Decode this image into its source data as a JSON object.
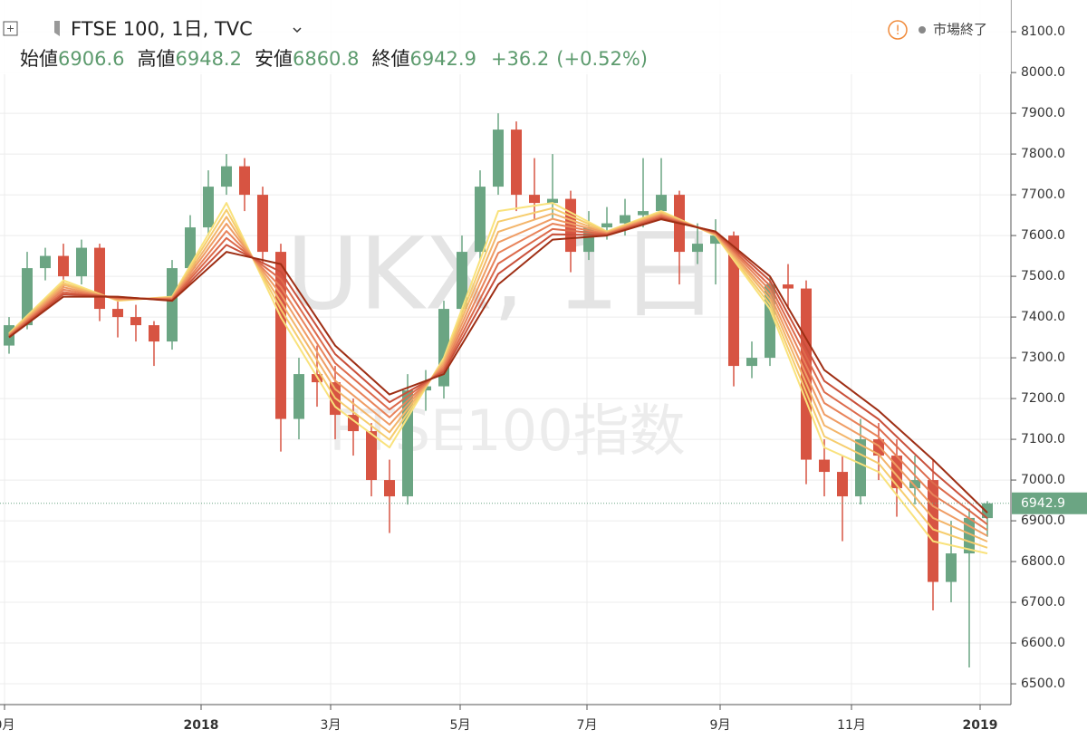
{
  "chart_data": {
    "type": "candlestick",
    "title": "FTSE 100, 1日, TVC",
    "header": {
      "labels": [
        "始値",
        "高値",
        "安値",
        "終値"
      ],
      "change": "+36.2",
      "change_pct": "(+0.52%)",
      "status": "市場終了"
    },
    "watermark": [
      "UKX, 1日",
      "FTSE100指数"
    ],
    "up_color": "#6ba583",
    "down_color": "#d75442",
    "x": [
      0,
      1,
      2,
      3,
      4,
      5,
      6,
      7,
      8,
      9,
      10,
      11,
      12,
      13,
      14,
      15,
      16,
      17,
      18,
      19,
      20,
      21,
      22,
      23,
      24,
      25,
      26,
      27,
      28,
      29,
      30,
      31,
      32,
      33,
      34,
      35,
      36,
      37,
      38,
      39,
      40,
      41,
      42,
      43,
      44,
      45,
      46,
      47,
      48,
      49,
      50,
      51,
      52,
      53,
      54
    ],
    "series": [
      {
        "open": [
          7330,
          7380,
          7520,
          7550,
          7500,
          7570,
          7420,
          7400,
          7380,
          7340,
          7520,
          7620,
          7720,
          7770,
          7700,
          7560,
          7150,
          7260,
          7240,
          7160,
          7120,
          7000,
          6960,
          7220,
          7230,
          7420,
          7560,
          7720,
          7860,
          7700,
          7680,
          7690,
          7560,
          7620,
          7630,
          7650,
          7660,
          7700,
          7560,
          7580,
          7600,
          7280,
          7300,
          7480,
          7470,
          7050,
          7020,
          6960,
          7100,
          7060,
          6980,
          7000,
          6750,
          6820,
          6906.6
        ],
        "high": [
          7400,
          7560,
          7570,
          7580,
          7590,
          7580,
          7450,
          7430,
          7390,
          7540,
          7650,
          7760,
          7800,
          7790,
          7720,
          7580,
          7300,
          7330,
          7280,
          7200,
          7140,
          7050,
          7260,
          7270,
          7440,
          7600,
          7760,
          7900,
          7880,
          7790,
          7800,
          7710,
          7660,
          7670,
          7690,
          7790,
          7790,
          7710,
          7630,
          7640,
          7610,
          7340,
          7500,
          7530,
          7490,
          7100,
          7060,
          7150,
          7140,
          7100,
          7060,
          7050,
          6900,
          6930,
          6948.2
        ],
        "low": [
          7310,
          7370,
          7490,
          7470,
          7480,
          7390,
          7350,
          7340,
          7280,
          7320,
          7500,
          7600,
          7700,
          7660,
          7530,
          7070,
          7100,
          7180,
          7100,
          7060,
          6960,
          6870,
          6940,
          7170,
          7200,
          7400,
          7540,
          7700,
          7660,
          7640,
          7640,
          7510,
          7540,
          7590,
          7600,
          7620,
          7640,
          7480,
          7530,
          7480,
          7230,
          7250,
          7280,
          7420,
          6990,
          6960,
          6850,
          6940,
          7000,
          6910,
          6940,
          6680,
          6700,
          6540,
          6860.8
        ],
        "close": [
          7380,
          7520,
          7550,
          7500,
          7570,
          7420,
          7400,
          7380,
          7340,
          7520,
          7620,
          7720,
          7770,
          7700,
          7560,
          7150,
          7260,
          7240,
          7160,
          7120,
          7000,
          6960,
          7220,
          7230,
          7420,
          7560,
          7720,
          7860,
          7700,
          7680,
          7690,
          7560,
          7620,
          7630,
          7650,
          7660,
          7700,
          7560,
          7580,
          7600,
          7280,
          7300,
          7480,
          7470,
          7050,
          7020,
          6960,
          7100,
          7060,
          6980,
          7000,
          6750,
          6820,
          6907,
          6942.9
        ]
      }
    ],
    "ma_x": [
      0,
      3,
      6,
      9,
      12,
      15,
      18,
      21,
      24,
      27,
      30,
      33,
      36,
      39,
      42,
      45,
      48,
      51,
      54
    ],
    "ma": [
      {
        "color": "#f9e27c",
        "values": [
          7360,
          7490,
          7440,
          7450,
          7680,
          7400,
          7180,
          7080,
          7300,
          7660,
          7680,
          7610,
          7660,
          7600,
          7420,
          7080,
          7020,
          6850,
          6820
        ]
      },
      {
        "color": "#f6cd6e",
        "values": [
          7359,
          7484,
          7441,
          7449,
          7663,
          7419,
          7201,
          7099,
          7294,
          7634,
          7667,
          7609,
          7657,
          7601,
          7431,
          7107,
          7041,
          6879,
          6834
        ]
      },
      {
        "color": "#f3b56a",
        "values": [
          7357,
          7479,
          7443,
          7447,
          7646,
          7437,
          7223,
          7117,
          7289,
          7609,
          7654,
          7607,
          7654,
          7603,
          7443,
          7134,
          7063,
          6907,
          6849
        ]
      },
      {
        "color": "#ef9c64",
        "values": [
          7356,
          7473,
          7444,
          7446,
          7629,
          7456,
          7244,
          7136,
          7283,
          7583,
          7641,
          7606,
          7651,
          7604,
          7454,
          7161,
          7084,
          6936,
          6863
        ]
      },
      {
        "color": "#e8835a",
        "values": [
          7354,
          7467,
          7446,
          7444,
          7611,
          7474,
          7266,
          7154,
          7277,
          7557,
          7629,
          7604,
          7649,
          7606,
          7466,
          7189,
          7106,
          6964,
          6877
        ]
      },
      {
        "color": "#dc6a4b",
        "values": [
          7353,
          7461,
          7447,
          7443,
          7594,
          7493,
          7287,
          7173,
          7271,
          7531,
          7616,
          7603,
          7646,
          7607,
          7477,
          7216,
          7127,
          6993,
          6891
        ]
      },
      {
        "color": "#c9503a",
        "values": [
          7351,
          7456,
          7449,
          7441,
          7577,
          7511,
          7309,
          7191,
          7266,
          7506,
          7603,
          7601,
          7643,
          7609,
          7489,
          7243,
          7149,
          7021,
          6906
        ]
      },
      {
        "color": "#9e2e14",
        "values": [
          7350,
          7450,
          7450,
          7440,
          7560,
          7530,
          7330,
          7210,
          7260,
          7480,
          7590,
          7600,
          7640,
          7610,
          7500,
          7270,
          7170,
          7050,
          6920
        ]
      }
    ],
    "xlim": [
      -0.5,
      55.25
    ],
    "xticks": [
      {
        "value": -0.25,
        "label": "0月"
      },
      {
        "value": 10.6,
        "label": "2018"
      },
      {
        "value": 17.75,
        "label": "3月"
      },
      {
        "value": 24.9,
        "label": "5月"
      },
      {
        "value": 31.9,
        "label": "7月"
      },
      {
        "value": 39.25,
        "label": "9月"
      },
      {
        "value": 46.5,
        "label": "11月"
      },
      {
        "value": 53.6,
        "label": "2019"
      }
    ],
    "ylim": [
      6449,
      8178
    ],
    "yticks": [
      {
        "value": 6500,
        "label": "6500.0"
      },
      {
        "value": 6600,
        "label": "6600.0"
      },
      {
        "value": 6700,
        "label": "6700.0"
      },
      {
        "value": 6800,
        "label": "6800.0"
      },
      {
        "value": 6900,
        "label": "6900.0"
      },
      {
        "value": 7000,
        "label": "7000.0"
      },
      {
        "value": 7100,
        "label": "7100.0"
      },
      {
        "value": 7200,
        "label": "7200.0"
      },
      {
        "value": 7300,
        "label": "7300.0"
      },
      {
        "value": 7400,
        "label": "7400.0"
      },
      {
        "value": 7500,
        "label": "7500.0"
      },
      {
        "value": 7600,
        "label": "7600.0"
      },
      {
        "value": 7700,
        "label": "7700.0"
      },
      {
        "value": 7800,
        "label": "7800.0"
      },
      {
        "value": 7900,
        "label": "7900.0"
      },
      {
        "value": 8000,
        "label": "8000.0"
      },
      {
        "value": 8100,
        "label": "8100.0"
      }
    ],
    "grid": true
  }
}
